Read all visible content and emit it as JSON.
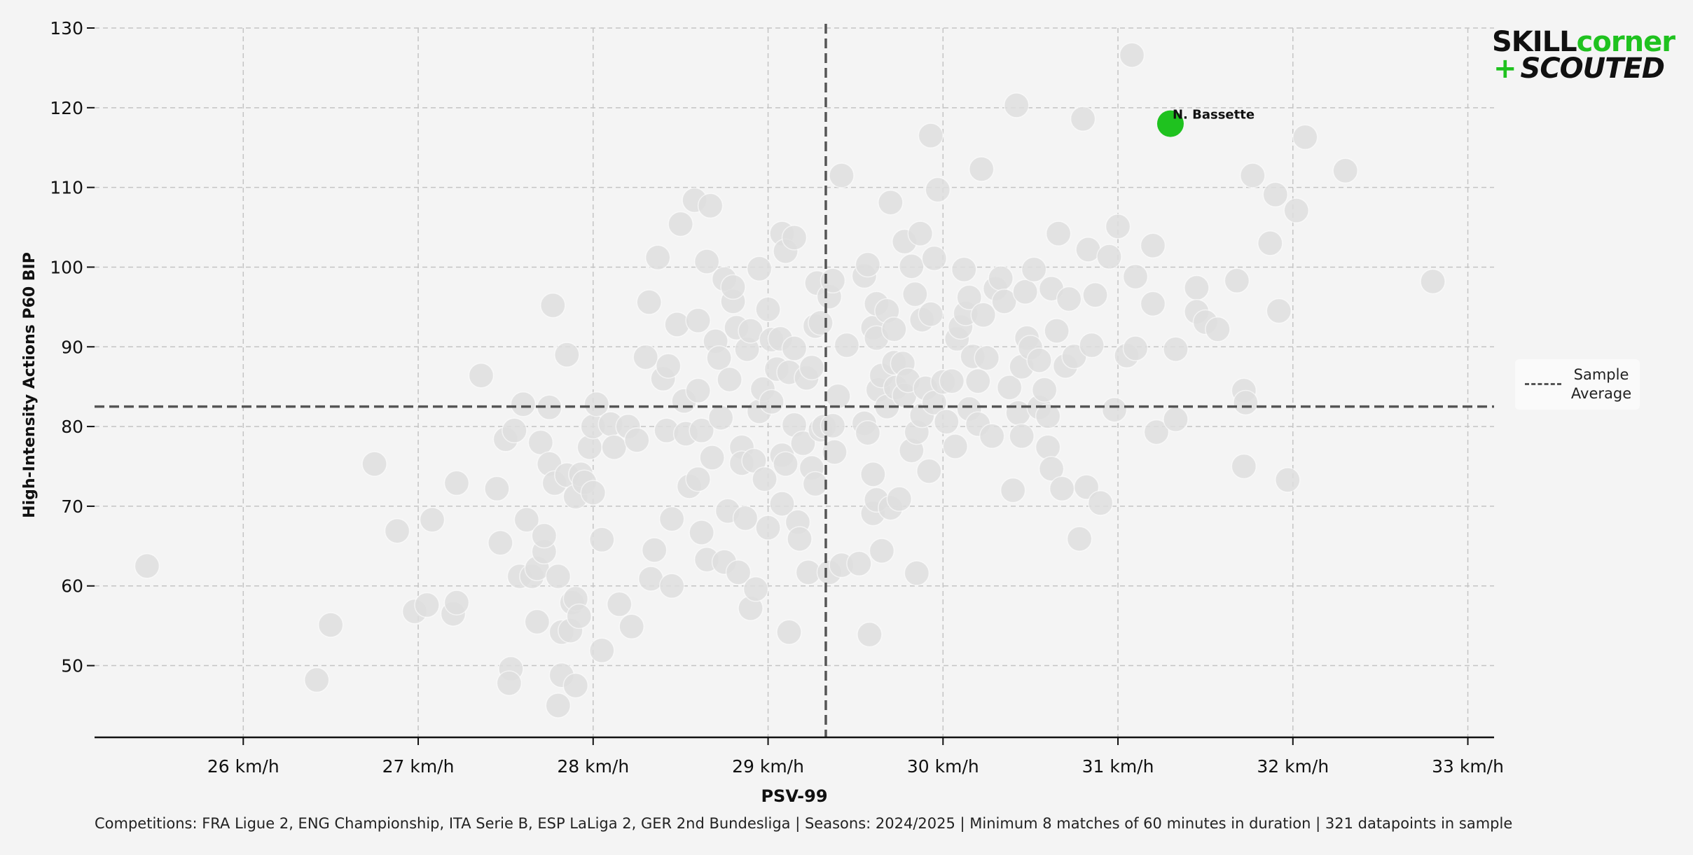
{
  "brand": {
    "skill": "SKILL",
    "corner": "corner",
    "plus": "+",
    "scouted": "SCOUTED",
    "accent_color": "#1fc21f"
  },
  "legend": {
    "label": "Sample Average"
  },
  "footer": {
    "text": "Competitions: FRA Ligue 2, ENG Championship, ITA Serie B, ESP LaLiga 2, GER 2nd Bundesliga | Seasons: 2024/2025 | Minimum 8 matches of 60 minutes in duration | 321 datapoints in sample"
  },
  "chart_data": {
    "type": "scatter",
    "xlabel": "PSV-99",
    "ylabel": "High-Intensity Actions P60 BIP",
    "xlim": [
      25.15,
      33.15
    ],
    "ylim": [
      41,
      130
    ],
    "x_ticks": [
      "26 km/h",
      "27 km/h",
      "28 km/h",
      "29 km/h",
      "30 km/h",
      "31 km/h",
      "32 km/h",
      "33 km/h"
    ],
    "x_tick_values": [
      26,
      27,
      28,
      29,
      30,
      31,
      32,
      33
    ],
    "y_ticks": [
      "50",
      "60",
      "70",
      "80",
      "90",
      "100",
      "110",
      "120",
      "130"
    ],
    "y_tick_values": [
      50,
      60,
      70,
      80,
      90,
      100,
      110,
      120,
      130
    ],
    "grid": true,
    "averages": {
      "x": 29.33,
      "y": 82.5
    },
    "highlight": {
      "label": "N. Bassette",
      "x": 31.3,
      "y": 118,
      "color": "#1fc21f"
    },
    "points_color": "#dedede",
    "points": [
      [
        25.45,
        62.5
      ],
      [
        26.42,
        48.2
      ],
      [
        26.5,
        55.1
      ],
      [
        26.75,
        75.3
      ],
      [
        26.88,
        66.9
      ],
      [
        26.98,
        56.8
      ],
      [
        27.05,
        57.6
      ],
      [
        27.08,
        68.3
      ],
      [
        27.2,
        56.5
      ],
      [
        27.22,
        57.9
      ],
      [
        27.22,
        72.9
      ],
      [
        27.36,
        86.4
      ],
      [
        27.45,
        72.2
      ],
      [
        27.47,
        65.4
      ],
      [
        27.5,
        78.4
      ],
      [
        27.53,
        49.6
      ],
      [
        27.52,
        47.8
      ],
      [
        27.55,
        79.5
      ],
      [
        27.58,
        61.2
      ],
      [
        27.6,
        82.8
      ],
      [
        27.62,
        68.3
      ],
      [
        27.65,
        61.2
      ],
      [
        27.68,
        62.2
      ],
      [
        27.68,
        55.5
      ],
      [
        27.7,
        78.0
      ],
      [
        27.72,
        64.3
      ],
      [
        27.72,
        66.3
      ],
      [
        27.75,
        82.4
      ],
      [
        27.75,
        75.3
      ],
      [
        27.77,
        95.2
      ],
      [
        27.78,
        72.9
      ],
      [
        27.8,
        61.2
      ],
      [
        27.8,
        45.0
      ],
      [
        27.82,
        48.8
      ],
      [
        27.82,
        54.2
      ],
      [
        27.85,
        89.0
      ],
      [
        27.85,
        73.9
      ],
      [
        27.87,
        54.4
      ],
      [
        27.88,
        57.9
      ],
      [
        27.9,
        47.5
      ],
      [
        27.9,
        71.2
      ],
      [
        27.9,
        58.4
      ],
      [
        27.92,
        56.2
      ],
      [
        27.93,
        74.0
      ],
      [
        27.95,
        73.0
      ],
      [
        27.98,
        77.4
      ],
      [
        28.0,
        71.7
      ],
      [
        28.0,
        80.0
      ],
      [
        28.02,
        82.8
      ],
      [
        28.05,
        65.8
      ],
      [
        28.05,
        51.9
      ],
      [
        28.1,
        80.3
      ],
      [
        28.12,
        77.4
      ],
      [
        28.15,
        57.7
      ],
      [
        28.2,
        80.0
      ],
      [
        28.22,
        54.9
      ],
      [
        28.25,
        78.3
      ],
      [
        28.3,
        88.7
      ],
      [
        28.32,
        95.6
      ],
      [
        28.33,
        60.9
      ],
      [
        28.35,
        64.5
      ],
      [
        28.37,
        101.2
      ],
      [
        28.4,
        86.0
      ],
      [
        28.42,
        79.5
      ],
      [
        28.43,
        87.6
      ],
      [
        28.45,
        60.0
      ],
      [
        28.45,
        68.4
      ],
      [
        28.48,
        92.8
      ],
      [
        28.5,
        105.4
      ],
      [
        28.52,
        83.2
      ],
      [
        28.53,
        79.1
      ],
      [
        28.55,
        72.5
      ],
      [
        28.58,
        108.4
      ],
      [
        28.6,
        73.4
      ],
      [
        28.6,
        84.5
      ],
      [
        28.6,
        93.3
      ],
      [
        28.62,
        66.7
      ],
      [
        28.62,
        79.5
      ],
      [
        28.65,
        63.3
      ],
      [
        28.65,
        100.7
      ],
      [
        28.67,
        107.7
      ],
      [
        28.68,
        76.1
      ],
      [
        28.7,
        90.7
      ],
      [
        28.72,
        88.6
      ],
      [
        28.73,
        81.1
      ],
      [
        28.75,
        98.5
      ],
      [
        28.75,
        63.0
      ],
      [
        28.77,
        69.4
      ],
      [
        28.78,
        85.9
      ],
      [
        28.8,
        95.7
      ],
      [
        28.8,
        97.5
      ],
      [
        28.82,
        92.4
      ],
      [
        28.83,
        61.7
      ],
      [
        28.85,
        77.4
      ],
      [
        28.85,
        75.4
      ],
      [
        28.87,
        68.5
      ],
      [
        28.88,
        89.7
      ],
      [
        28.9,
        57.2
      ],
      [
        28.9,
        92.0
      ],
      [
        28.92,
        75.7
      ],
      [
        28.93,
        59.6
      ],
      [
        28.95,
        99.8
      ],
      [
        28.95,
        81.9
      ],
      [
        28.97,
        84.7
      ],
      [
        28.98,
        73.4
      ],
      [
        29.0,
        67.3
      ],
      [
        29.0,
        94.7
      ],
      [
        29.02,
        90.9
      ],
      [
        29.02,
        83.1
      ],
      [
        29.05,
        87.2
      ],
      [
        29.07,
        91.0
      ],
      [
        29.08,
        76.4
      ],
      [
        29.08,
        104.2
      ],
      [
        29.08,
        70.3
      ],
      [
        29.1,
        75.3
      ],
      [
        29.1,
        102.0
      ],
      [
        29.12,
        86.8
      ],
      [
        29.12,
        54.2
      ],
      [
        29.15,
        103.7
      ],
      [
        29.15,
        89.8
      ],
      [
        29.15,
        80.2
      ],
      [
        29.17,
        68.0
      ],
      [
        29.18,
        65.9
      ],
      [
        29.2,
        77.9
      ],
      [
        29.22,
        86.1
      ],
      [
        29.23,
        61.7
      ],
      [
        29.25,
        74.8
      ],
      [
        29.25,
        87.4
      ],
      [
        29.27,
        72.8
      ],
      [
        29.27,
        92.6
      ],
      [
        29.28,
        98.0
      ],
      [
        29.3,
        79.6
      ],
      [
        29.3,
        93.0
      ],
      [
        29.32,
        80.0
      ],
      [
        29.35,
        61.7
      ],
      [
        29.35,
        96.3
      ],
      [
        29.37,
        98.3
      ],
      [
        29.37,
        80.1
      ],
      [
        29.38,
        76.8
      ],
      [
        29.4,
        83.8
      ],
      [
        29.42,
        111.5
      ],
      [
        29.42,
        62.6
      ],
      [
        29.45,
        90.2
      ],
      [
        29.52,
        62.8
      ],
      [
        29.55,
        98.9
      ],
      [
        29.55,
        80.4
      ],
      [
        29.57,
        100.3
      ],
      [
        29.57,
        79.2
      ],
      [
        29.58,
        53.9
      ],
      [
        29.6,
        92.4
      ],
      [
        29.6,
        74.0
      ],
      [
        29.6,
        69.1
      ],
      [
        29.62,
        91.1
      ],
      [
        29.62,
        70.8
      ],
      [
        29.62,
        95.4
      ],
      [
        29.63,
        84.6
      ],
      [
        29.65,
        86.4
      ],
      [
        29.65,
        64.4
      ],
      [
        29.68,
        82.5
      ],
      [
        29.68,
        94.5
      ],
      [
        29.7,
        108.1
      ],
      [
        29.7,
        69.8
      ],
      [
        29.72,
        88.0
      ],
      [
        29.72,
        92.2
      ],
      [
        29.73,
        84.9
      ],
      [
        29.75,
        70.9
      ],
      [
        29.77,
        87.9
      ],
      [
        29.78,
        103.2
      ],
      [
        29.78,
        83.9
      ],
      [
        29.8,
        85.8
      ],
      [
        29.82,
        100.1
      ],
      [
        29.82,
        77.0
      ],
      [
        29.84,
        96.6
      ],
      [
        29.85,
        61.6
      ],
      [
        29.85,
        79.3
      ],
      [
        29.87,
        104.2
      ],
      [
        29.88,
        93.4
      ],
      [
        29.88,
        81.4
      ],
      [
        29.9,
        84.8
      ],
      [
        29.92,
        74.4
      ],
      [
        29.93,
        116.5
      ],
      [
        29.93,
        94.1
      ],
      [
        29.95,
        83.0
      ],
      [
        29.95,
        101.1
      ],
      [
        29.97,
        109.7
      ],
      [
        30.0,
        85.6
      ],
      [
        30.02,
        80.6
      ],
      [
        30.05,
        85.7
      ],
      [
        30.07,
        77.5
      ],
      [
        30.08,
        91.0
      ],
      [
        30.1,
        92.5
      ],
      [
        30.12,
        99.7
      ],
      [
        30.13,
        94.2
      ],
      [
        30.15,
        82.2
      ],
      [
        30.15,
        96.2
      ],
      [
        30.17,
        88.8
      ],
      [
        30.2,
        85.7
      ],
      [
        30.2,
        80.3
      ],
      [
        30.22,
        112.3
      ],
      [
        30.23,
        94.0
      ],
      [
        30.25,
        88.6
      ],
      [
        30.28,
        78.8
      ],
      [
        30.3,
        97.3
      ],
      [
        30.33,
        98.6
      ],
      [
        30.35,
        95.7
      ],
      [
        30.38,
        84.9
      ],
      [
        30.4,
        72.0
      ],
      [
        30.42,
        120.3
      ],
      [
        30.43,
        81.7
      ],
      [
        30.45,
        87.5
      ],
      [
        30.45,
        78.8
      ],
      [
        30.47,
        96.9
      ],
      [
        30.48,
        91.1
      ],
      [
        30.5,
        89.9
      ],
      [
        30.52,
        99.7
      ],
      [
        30.55,
        82.4
      ],
      [
        30.55,
        88.3
      ],
      [
        30.58,
        84.6
      ],
      [
        30.6,
        81.3
      ],
      [
        30.6,
        77.4
      ],
      [
        30.62,
        74.7
      ],
      [
        30.62,
        97.3
      ],
      [
        30.65,
        92.0
      ],
      [
        30.66,
        104.2
      ],
      [
        30.68,
        72.2
      ],
      [
        30.7,
        87.6
      ],
      [
        30.72,
        96.0
      ],
      [
        30.75,
        88.8
      ],
      [
        30.78,
        65.9
      ],
      [
        30.8,
        118.6
      ],
      [
        30.82,
        72.4
      ],
      [
        30.83,
        102.2
      ],
      [
        30.85,
        90.2
      ],
      [
        30.87,
        96.5
      ],
      [
        30.9,
        70.4
      ],
      [
        30.95,
        101.3
      ],
      [
        30.98,
        82.1
      ],
      [
        31.0,
        105.1
      ],
      [
        31.05,
        88.9
      ],
      [
        31.08,
        126.6
      ],
      [
        31.1,
        89.8
      ],
      [
        31.1,
        98.8
      ],
      [
        31.2,
        95.4
      ],
      [
        31.2,
        102.7
      ],
      [
        31.22,
        79.3
      ],
      [
        31.33,
        89.7
      ],
      [
        31.33,
        80.9
      ],
      [
        31.45,
        97.4
      ],
      [
        31.45,
        94.4
      ],
      [
        31.5,
        93.1
      ],
      [
        31.57,
        92.2
      ],
      [
        31.68,
        98.3
      ],
      [
        31.72,
        84.5
      ],
      [
        31.72,
        75.0
      ],
      [
        31.73,
        83.0
      ],
      [
        31.77,
        111.5
      ],
      [
        31.87,
        103.0
      ],
      [
        31.9,
        109.1
      ],
      [
        31.92,
        94.5
      ],
      [
        31.97,
        73.3
      ],
      [
        32.02,
        107.1
      ],
      [
        32.07,
        116.3
      ],
      [
        32.3,
        112.1
      ],
      [
        32.8,
        98.2
      ]
    ]
  }
}
